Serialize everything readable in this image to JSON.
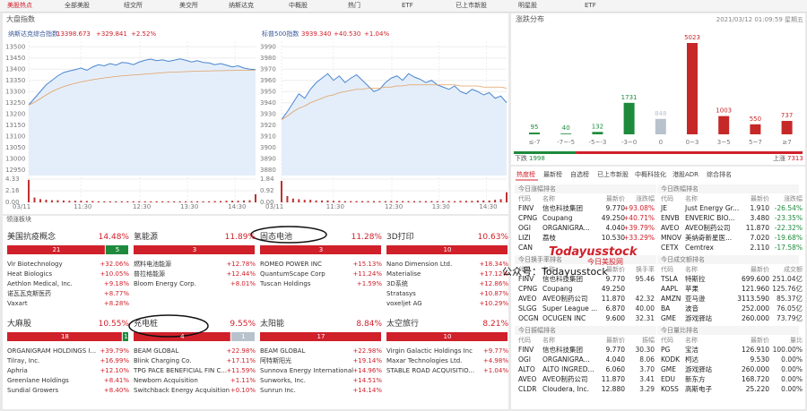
{
  "tabs": [
    "美股热点",
    "全部美股",
    "纽交所",
    "美交所",
    "纳斯达克",
    "中概股",
    "热门",
    "ETF",
    "已上市新股",
    "明星股",
    "ETF"
  ],
  "index_panel": {
    "title": "大盘指数"
  },
  "chart_data": [
    {
      "type": "line",
      "title": "纳斯达克综合指数",
      "price": "13398.673",
      "change": "+329.841",
      "change_pct": "+2.52%",
      "xlabels": [
        "03/11",
        "11:30",
        "12:30",
        "13:30",
        "14:30"
      ],
      "ylim": [
        12925,
        13525
      ],
      "yticks": [
        12950,
        13000,
        13050,
        13100,
        13150,
        13200,
        13250,
        13300,
        13350,
        13400,
        13450,
        13500
      ],
      "grid": true,
      "series": [
        {
          "color": "#4a86d0",
          "values": [
            13240,
            13270,
            13300,
            13330,
            13350,
            13370,
            13385,
            13392,
            13398,
            13405,
            13395,
            13410,
            13420,
            13415,
            13425,
            13418,
            13430,
            13428,
            13420,
            13432,
            13440,
            13445,
            13438,
            13442,
            13435,
            13440,
            13446,
            13440,
            13432,
            13438,
            13430,
            13428,
            13420,
            13425,
            13418,
            13410,
            13415,
            13405,
            13400,
            13398
          ]
        },
        {
          "color": "#e0a060",
          "values": [
            13240,
            13252,
            13268,
            13285,
            13300,
            13312,
            13322,
            13330,
            13337,
            13343,
            13348,
            13353,
            13357,
            13361,
            13364,
            13367,
            13370,
            13372,
            13374,
            13376,
            13378,
            13380,
            13382,
            13384,
            13386,
            13387,
            13388,
            13389,
            13390,
            13391,
            13392,
            13392,
            13393,
            13393,
            13394,
            13394,
            13395,
            13395,
            13395,
            13396
          ]
        }
      ],
      "volume": {
        "color": "#c03030",
        "ylim": [
          0,
          4.33
        ],
        "yticks": [
          {
            "value": 0,
            "label": "0.00"
          },
          2.16,
          4.33
        ],
        "values": [
          4.2,
          0.9,
          0.6,
          0.5,
          0.4,
          0.4,
          0.35,
          0.3,
          0.3,
          0.3,
          0.25,
          0.25,
          0.2,
          0.2,
          0.2,
          0.2,
          0.2,
          0.2,
          0.2,
          0.2,
          0.2,
          0.2,
          0.2,
          0.2,
          0.2,
          0.2,
          0.2,
          0.2,
          0.2,
          0.2,
          0.2,
          0.2,
          0.25,
          0.25,
          0.3,
          0.3,
          0.3,
          0.35,
          0.4,
          1.5
        ]
      }
    },
    {
      "type": "line",
      "title": "标普500指数",
      "price": "3939.340",
      "change": "+40.530",
      "change_pct": "+1.04%",
      "xlabels": [
        "03/11",
        "11:30",
        "12:30",
        "13:30",
        "14:30"
      ],
      "ylim": [
        3875,
        3995
      ],
      "yticks": [
        3880,
        3890,
        3900,
        3910,
        3920,
        3930,
        3940,
        3950,
        3960,
        3970,
        3980,
        3990
      ],
      "grid": true,
      "series": [
        {
          "color": "#4a86d0",
          "values": [
            3925,
            3932,
            3940,
            3948,
            3944,
            3952,
            3958,
            3962,
            3966,
            3960,
            3964,
            3958,
            3962,
            3965,
            3960,
            3955,
            3950,
            3952,
            3958,
            3962,
            3964,
            3960,
            3966,
            3963,
            3961,
            3958,
            3960,
            3956,
            3954,
            3952,
            3955,
            3950,
            3948,
            3952,
            3950,
            3947,
            3949,
            3944,
            3946,
            3940
          ]
        },
        {
          "color": "#e0a060",
          "values": [
            3925,
            3928,
            3932,
            3935,
            3937,
            3940,
            3942,
            3944,
            3946,
            3947,
            3949,
            3950,
            3951,
            3952,
            3952,
            3953,
            3953,
            3953,
            3954,
            3954,
            3955,
            3955,
            3956,
            3956,
            3956,
            3956,
            3956,
            3956,
            3956,
            3956,
            3956,
            3955,
            3955,
            3955,
            3955,
            3954,
            3954,
            3954,
            3954,
            3953
          ]
        }
      ],
      "volume": {
        "color": "#c03030",
        "ylim": [
          0,
          1.84
        ],
        "yticks": [
          {
            "value": 0,
            "label": "0.00"
          },
          0.92,
          1.84
        ],
        "values": [
          1.7,
          0.5,
          0.3,
          0.25,
          0.2,
          0.2,
          0.15,
          0.15,
          0.15,
          0.12,
          0.12,
          0.1,
          0.1,
          0.1,
          0.1,
          0.1,
          0.1,
          0.1,
          0.1,
          0.1,
          0.1,
          0.1,
          0.1,
          0.1,
          0.1,
          0.1,
          0.1,
          0.1,
          0.1,
          0.1,
          0.1,
          0.12,
          0.12,
          0.12,
          0.15,
          0.15,
          0.15,
          0.2,
          0.25,
          0.8
        ]
      }
    },
    {
      "type": "bar",
      "title": "涨跌分布",
      "timestamp": "2021/03/12 01:09:59 星期五",
      "categories": [
        "≤-7",
        "-7~-5",
        "-5~-3",
        "-3~0",
        "0",
        "0~3",
        "3~5",
        "5~7",
        "≥7"
      ],
      "values": [
        95,
        40,
        132,
        1731,
        848,
        5023,
        1003,
        550,
        737
      ],
      "colors": [
        "#1e8a3c",
        "#1e8a3c",
        "#1e8a3c",
        "#1e8a3c",
        "#b8c2cc",
        "#c62828",
        "#c62828",
        "#c62828",
        "#c62828"
      ],
      "fall_label": "下跌",
      "fall": 1998,
      "rise_label": "上涨",
      "rise": 7313
    }
  ],
  "rank_tabs": [
    "热度榜",
    "最新榜",
    "自选榜",
    "已上市新股",
    "中概科技化",
    "港股ADR",
    "综合排名"
  ],
  "tables": [
    {
      "title": "今日涨幅排名",
      "headers": [
        "代码",
        "名称",
        "最新价",
        "涨跌幅"
      ],
      "rows": [
        [
          "FINV",
          "信也科技集团",
          "9.770",
          "+93.08%"
        ],
        [
          "CPNG",
          "Coupang",
          "49.250",
          "+40.71%"
        ],
        [
          "OGI",
          "ORGANIGRA...",
          "4.040",
          "+39.79%"
        ],
        [
          "LIZI",
          "荔枝",
          "10.530",
          "+33.29%"
        ],
        [
          "CAN"
        ]
      ]
    },
    {
      "title": "今日跌幅排名",
      "headers": [
        "代码",
        "名称",
        "最新价",
        "涨跌幅"
      ],
      "rows": [
        [
          "JE",
          "Just Energy Gr...",
          "1.910",
          "-26.54%"
        ],
        [
          "ENVB",
          "ENVERIC BIO...",
          "3.480",
          "-23.35%"
        ],
        [
          "AVEO",
          "AVEO制药公司",
          "11.870",
          "-22.32%"
        ],
        [
          "MNOV",
          "美纳奇新星医...",
          "7.020",
          "-19.68%"
        ],
        [
          "CETX",
          "Cemtrex",
          "2.110",
          "-17.58%"
        ]
      ]
    },
    {
      "title": "今日换手率排名",
      "headers": [
        "代码",
        "名称",
        "最新价",
        "换手率"
      ],
      "rows": [
        [
          "FINV",
          "信也科技集团",
          "9.770",
          "95.46"
        ],
        [
          "CPNG",
          "Coupang",
          "49.250"
        ],
        [
          "AVEO",
          "AVEO制药公司",
          "11.870",
          "42.32"
        ],
        [
          "SLGG",
          "Super League ...",
          "6.870",
          "40.00"
        ],
        [
          "OCGN",
          "OCUGEN INC",
          "9.600",
          "32.31"
        ]
      ]
    },
    {
      "title": "今日成交额排名",
      "headers": [
        "代码",
        "名称",
        "最新价",
        "成交额"
      ],
      "rows": [
        [
          "TSLA",
          "特斯拉",
          "699.600",
          "251.04亿"
        ],
        [
          "AAPL",
          "苹果",
          "121.960",
          "125.76亿"
        ],
        [
          "AMZN",
          "亚马逊",
          "3113.590",
          "85.37亿"
        ],
        [
          "BA",
          "波音",
          "252.000",
          "76.05亿"
        ],
        [
          "GME",
          "游戏驿站",
          "260.000",
          "73.79亿"
        ]
      ]
    },
    {
      "title": "今日振幅排名",
      "headers": [
        "代码",
        "名称",
        "最新价",
        "振幅"
      ],
      "rows": [
        [
          "FINV",
          "信也科技集团",
          "9.770",
          "30.30"
        ],
        [
          "OGI",
          "ORGANIGRA...",
          "4.040",
          "8.06"
        ],
        [
          "ALTO",
          "ALTO INGRED...",
          "6.060",
          "3.70"
        ],
        [
          "AVEO",
          "AVEO制药公司",
          "11.870",
          "3.41"
        ],
        [
          "CLDR",
          "Cloudera, Inc.",
          "12.880",
          "3.29"
        ]
      ]
    },
    {
      "title": "今日量比排名",
      "headers": [
        "代码",
        "名称",
        "最新价",
        "量比"
      ],
      "rows": [
        [
          "PG",
          "宝洁",
          "126.910",
          "100.00%"
        ],
        [
          "KODK",
          "柯达",
          "9.530",
          "0.00%"
        ],
        [
          "GME",
          "游戏驿站",
          "260.000",
          "0.00%"
        ],
        [
          "EDU",
          "新东方",
          "168.720",
          "0.00%"
        ],
        [
          "KOSS",
          "高斯电子",
          "25.220",
          "0.00%"
        ]
      ]
    }
  ],
  "sectors": {
    "title": "领涨板块",
    "tiles": [
      {
        "name": "美国抗疫概念",
        "pct": "14.48%",
        "counts": {
          "up": 21,
          "down": 5
        },
        "stocks": [
          [
            "Vir Biotechnology",
            "+32.06%"
          ],
          [
            "Heat Biologics",
            "+10.05%"
          ],
          [
            "Aethlon Medical, Inc.",
            "+9.18%"
          ],
          [
            "诺瓦瓦克斯医药",
            "+8.77%"
          ],
          [
            "Vaxart",
            "+8.28%"
          ]
        ]
      },
      {
        "name": "氢能源",
        "pct": "11.89%",
        "counts": {
          "up": 3
        },
        "stocks": [
          [
            "燃料电池能源",
            "+12.78%"
          ],
          [
            "普拉格能源",
            "+12.44%"
          ],
          [
            "Bloom Energy Corp.",
            "+8.01%"
          ]
        ]
      },
      {
        "name": "固态电池",
        "pct": "11.28%",
        "counts": {
          "up": 3
        },
        "stocks": [
          [
            "ROMEO POWER INC",
            "+15.13%"
          ],
          [
            "QuantumScape Corp",
            "+11.24%"
          ],
          [
            "Tuscan Holdings",
            "+1.59%"
          ]
        ]
      },
      {
        "name": "3D打印",
        "pct": "10.63%",
        "counts": {
          "up": 10
        },
        "stocks": [
          [
            "Nano Dimension Ltd.",
            "+18.34%"
          ],
          [
            "Materialise",
            "+17.12%"
          ],
          [
            "3D系统",
            "+12.86%"
          ],
          [
            "Stratasys",
            "+10.87%"
          ],
          [
            "voxeljet AG",
            "+10.29%"
          ]
        ]
      },
      {
        "name": "大麻股",
        "pct": "10.55%",
        "counts": {
          "up": 18,
          "down": 1
        },
        "stocks": [
          [
            "ORGANIGRAM HOLDINGS I...",
            "+39.79%"
          ],
          [
            "Tilray, Inc.",
            "+16.99%"
          ],
          [
            "Aphria",
            "+12.10%"
          ],
          [
            "Greenlane Holdings",
            "+8.41%"
          ],
          [
            "Sundial Growers",
            "+8.40%"
          ]
        ]
      },
      {
        "name": "充电桩",
        "pct": "9.55%",
        "counts": {
          "up": 4,
          "flat": 1
        },
        "stocks": [
          [
            "BEAM GLOBAL",
            "+22.98%"
          ],
          [
            "Blink Charging Co.",
            "+17.11%"
          ],
          [
            "TPG PACE BENEFICIAL FIN C...",
            "+11.59%"
          ],
          [
            "Newborn Acquisition",
            "+1.11%"
          ],
          [
            "Switchback Energy Acquisition",
            "+0.10%"
          ]
        ]
      },
      {
        "name": "太阳能",
        "pct": "8.84%",
        "counts": {
          "up": 17
        },
        "stocks": [
          [
            "BEAM GLOBAL",
            "+22.98%"
          ],
          [
            "阿特斯阳光",
            "+19.14%"
          ],
          [
            "Sunnova Energy International",
            "+14.96%"
          ],
          [
            "Sunworks, Inc.",
            "+14.51%"
          ],
          [
            "Sunrun Inc.",
            "+14.14%"
          ]
        ]
      },
      {
        "name": "太空旅行",
        "pct": "8.21%",
        "counts": {
          "up": 10
        },
        "stocks": [
          [
            "Virgin Galactic Holdings Inc",
            "+9.77%"
          ],
          [
            "Maxar Technologies Ltd.",
            "+4.98%"
          ],
          [
            "STABLE ROAD ACQUISITIO...",
            "+1.04%"
          ]
        ]
      }
    ]
  },
  "watermark": [
    "Todayusstock",
    "今日美股网",
    "公众号：Todayusstock"
  ]
}
